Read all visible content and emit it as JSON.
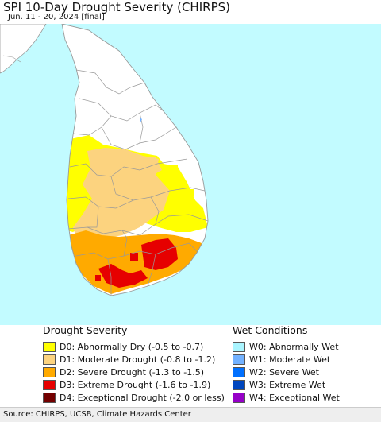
{
  "title": "SPI 10-Day Drought Severity (CHIRPS)",
  "subtitle": "Jun. 11 - 20, 2024 [final]",
  "colors": {
    "ocean": "#c2fbff",
    "land_neutral": "#ffffff",
    "india_land": "#ffffff",
    "boundary": "#999999"
  },
  "legend_drought": {
    "heading": "Drought Severity",
    "items": [
      {
        "label": "D0: Abnormally Dry (-0.5 to -0.7)",
        "color": "#ffff00"
      },
      {
        "label": "D1: Moderate Drought (-0.8 to -1.2)",
        "color": "#fcd37f"
      },
      {
        "label": "D2: Severe Drought (-1.3 to -1.5)",
        "color": "#ffaa00"
      },
      {
        "label": "D3: Extreme Drought (-1.6 to -1.9)",
        "color": "#e60000"
      },
      {
        "label": "D4: Exceptional Drought (-2.0 or less)",
        "color": "#730000"
      }
    ]
  },
  "legend_wet": {
    "heading": "Wet Conditions",
    "items": [
      {
        "label": "W0: Abnormally Wet",
        "color": "#aaf5ff"
      },
      {
        "label": "W1: Moderate Wet",
        "color": "#73b2ff"
      },
      {
        "label": "W2: Severe Wet",
        "color": "#0070ff"
      },
      {
        "label": "W3: Extreme Wet",
        "color": "#0046be"
      },
      {
        "label": "W4: Exceptional Wet",
        "color": "#9600c8"
      }
    ]
  },
  "source": "Source: CHIRPS, UCSB, Climate Hazards Center"
}
